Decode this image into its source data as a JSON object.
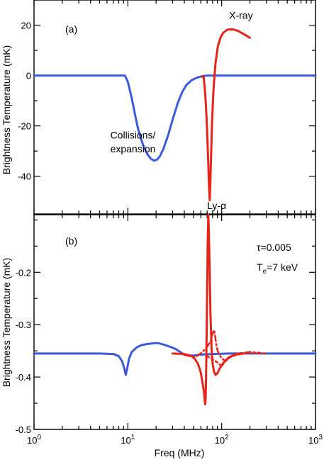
{
  "figure": {
    "xlabel": "Freq (MHz)"
  },
  "chart_data": [
    {
      "type": "line",
      "panel_label": "(a)",
      "ylabel": "Brightness Temperature (mK)",
      "x_scale": "log",
      "xlim": [
        1,
        1000
      ],
      "ylim": [
        -55,
        30
      ],
      "yticks": [
        -40,
        -20,
        0,
        20
      ],
      "series": [
        {
          "color": "#3b5bdb",
          "style": "solid",
          "points": [
            [
              1,
              0
            ],
            [
              5,
              0
            ],
            [
              9,
              0
            ],
            [
              9.3,
              0
            ],
            [
              10,
              -2.5
            ],
            [
              11,
              -9
            ],
            [
              12,
              -16
            ],
            [
              13,
              -22
            ],
            [
              14.5,
              -27.5
            ],
            [
              16,
              -31
            ],
            [
              17.5,
              -33
            ],
            [
              19,
              -33.8
            ],
            [
              20.5,
              -33.4
            ],
            [
              22,
              -32
            ],
            [
              24,
              -29
            ],
            [
              27,
              -23.5
            ],
            [
              30,
              -17.5
            ],
            [
              34,
              -11
            ],
            [
              38,
              -6.5
            ],
            [
              42,
              -3.8
            ],
            [
              48,
              -1.8
            ],
            [
              55,
              -0.8
            ],
            [
              62,
              -0.3
            ],
            [
              70,
              0
            ],
            [
              100,
              0
            ],
            [
              1000,
              0
            ]
          ]
        },
        {
          "color": "#e8231a",
          "style": "solid",
          "points": [
            [
              62,
              -0.3
            ],
            [
              63,
              -0.6
            ],
            [
              64,
              -0.4
            ],
            [
              64.5,
              -1
            ],
            [
              66,
              -5
            ],
            [
              68,
              -12
            ],
            [
              70,
              -22
            ],
            [
              72,
              -35
            ],
            [
              73.5,
              -45
            ],
            [
              74.5,
              -49.5
            ],
            [
              75.5,
              -44
            ],
            [
              77,
              -33
            ],
            [
              79,
              -18
            ],
            [
              82,
              -5
            ],
            [
              86,
              5
            ],
            [
              91,
              11.5
            ],
            [
              97,
              15
            ],
            [
              104,
              17
            ],
            [
              115,
              18.2
            ],
            [
              130,
              18.4
            ],
            [
              150,
              17.7
            ],
            [
              175,
              16.3
            ],
            [
              200,
              15
            ]
          ]
        }
      ],
      "annotations": [
        {
          "text": "Collisions/",
          "x": 6.5,
          "y": -25
        },
        {
          "text": "expansion",
          "x": 6.5,
          "y": -30.5
        },
        {
          "text": "Ly-α",
          "x": 70,
          "y": -53
        },
        {
          "text": "X-ray",
          "x": 120,
          "y": 22.5
        }
      ]
    },
    {
      "type": "line",
      "panel_label": "(b)",
      "ylabel": "Brightness Temperature (mK)",
      "x_scale": "log",
      "xlim": [
        1,
        1000
      ],
      "ylim": [
        -0.5,
        -0.09
      ],
      "yticks": [
        -0.5,
        -0.4,
        -0.3,
        -0.2
      ],
      "xticks": [
        1,
        10,
        100,
        1000
      ],
      "annotation_tau": "τ=0.005",
      "annotation_te": {
        "prefix": "T",
        "sub": "e",
        "suffix": "=7 keV"
      },
      "series": [
        {
          "color": "#3b5bdb",
          "style": "solid",
          "points": [
            [
              1,
              -0.355
            ],
            [
              5,
              -0.355
            ],
            [
              7,
              -0.356
            ],
            [
              8,
              -0.36
            ],
            [
              8.7,
              -0.37
            ],
            [
              9.2,
              -0.385
            ],
            [
              9.5,
              -0.396
            ],
            [
              9.8,
              -0.385
            ],
            [
              10.3,
              -0.365
            ],
            [
              11,
              -0.352
            ],
            [
              12.5,
              -0.343
            ],
            [
              14,
              -0.339
            ],
            [
              16,
              -0.337
            ],
            [
              18,
              -0.336
            ],
            [
              20,
              -0.335
            ],
            [
              22,
              -0.336
            ],
            [
              25,
              -0.339
            ],
            [
              28,
              -0.342
            ],
            [
              32,
              -0.346
            ],
            [
              36,
              -0.352
            ],
            [
              40,
              -0.357
            ],
            [
              45,
              -0.359
            ],
            [
              50,
              -0.359
            ],
            [
              60,
              -0.357
            ],
            [
              80,
              -0.356
            ],
            [
              120,
              -0.355
            ],
            [
              1000,
              -0.355
            ]
          ]
        },
        {
          "color": "#e8231a",
          "style": "solid",
          "points": [
            [
              30,
              -0.355
            ],
            [
              40,
              -0.356
            ],
            [
              48,
              -0.36
            ],
            [
              52,
              -0.366
            ],
            [
              56,
              -0.375
            ],
            [
              60,
              -0.392
            ],
            [
              63,
              -0.415
            ],
            [
              65,
              -0.43
            ],
            [
              66,
              -0.445
            ],
            [
              66.8,
              -0.452
            ],
            [
              67.5,
              -0.44
            ],
            [
              68.2,
              -0.4
            ],
            [
              69,
              -0.33
            ],
            [
              70,
              -0.24
            ],
            [
              71,
              -0.14
            ],
            [
              72,
              -0.09
            ],
            [
              73,
              -0.12
            ],
            [
              74.5,
              -0.2
            ],
            [
              76,
              -0.28
            ],
            [
              78,
              -0.345
            ],
            [
              80,
              -0.375
            ],
            [
              83,
              -0.39
            ],
            [
              86,
              -0.396
            ],
            [
              90,
              -0.393
            ],
            [
              95,
              -0.384
            ],
            [
              105,
              -0.372
            ],
            [
              120,
              -0.362
            ],
            [
              140,
              -0.357
            ],
            [
              170,
              -0.355
            ]
          ]
        },
        {
          "color": "#e8231a",
          "style": "dashed",
          "points": [
            [
              40,
              -0.358
            ],
            [
              52,
              -0.362
            ],
            [
              62,
              -0.353
            ],
            [
              70,
              -0.342
            ],
            [
              76,
              -0.332
            ],
            [
              80,
              -0.318
            ],
            [
              83,
              -0.31
            ],
            [
              85,
              -0.32
            ],
            [
              87,
              -0.335
            ],
            [
              89,
              -0.345
            ],
            [
              92,
              -0.353
            ],
            [
              98,
              -0.362
            ],
            [
              110,
              -0.37
            ],
            [
              125,
              -0.36
            ],
            [
              150,
              -0.355
            ],
            [
              200,
              -0.352
            ],
            [
              260,
              -0.354
            ]
          ]
        },
        {
          "color": "#e8231a",
          "style": "dotted",
          "points": [
            [
              70,
              -0.36
            ],
            [
              90,
              -0.372
            ],
            [
              100,
              -0.38
            ],
            [
              110,
              -0.368
            ],
            [
              130,
              -0.36
            ],
            [
              160,
              -0.356
            ],
            [
              200,
              -0.354
            ],
            [
              300,
              -0.355
            ]
          ]
        }
      ]
    }
  ]
}
